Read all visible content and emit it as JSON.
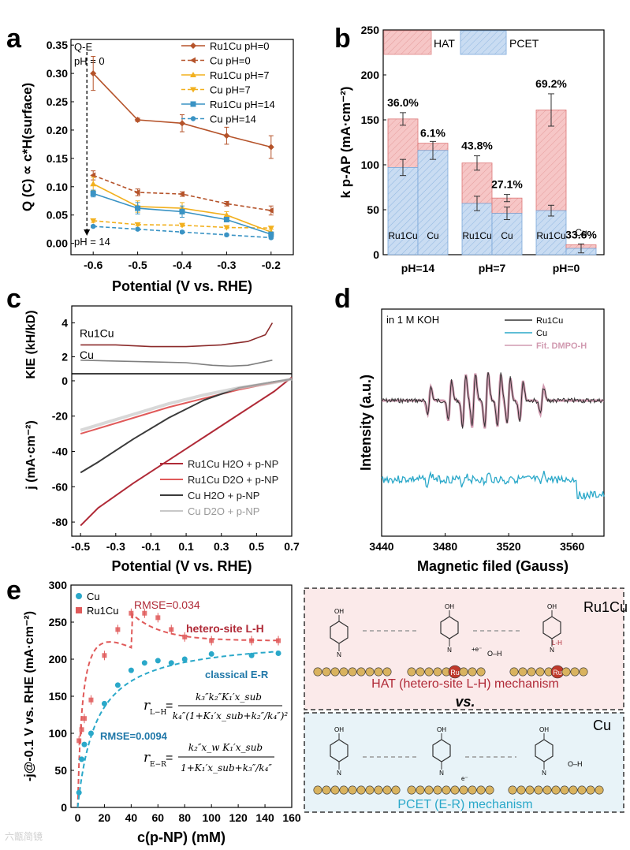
{
  "panel_labels": {
    "a": "a",
    "b": "b",
    "c": "c",
    "d": "d",
    "e": "e"
  },
  "colors": {
    "ru_ph0": "#b5532a",
    "cu_ph0": "#b5532a",
    "ru_ph7": "#f2b01e",
    "cu_ph7": "#f2b01e",
    "ru_ph14": "#3a93c4",
    "cu_ph14": "#3a93c4",
    "hat": "#f6c6c6",
    "pcet": "#c9dcf2",
    "ru_dark": "#8b2a2a",
    "cu_gray": "#7f7f7f",
    "ru_h2o": "#b02a37",
    "ru_d2o": "#e05a5a",
    "cu_h2o": "#3a3a3a",
    "cu_d2o": "#c8c8c8",
    "cyan": "#2aa8c9",
    "pink_fit": "#d19ab0",
    "ru1cu_box": "#fbeaea",
    "cu_box": "#e8f3f8",
    "gold": "#d9b35f",
    "ru_atom": "#c0392b"
  },
  "chart_data": [
    {
      "id": "a",
      "type": "line",
      "xlabel": "Potential (V vs. RHE)",
      "ylabel": "Q (C) ∝ c*H(surface)",
      "xlim": [
        -0.65,
        -0.15
      ],
      "ylim": [
        -0.02,
        0.36
      ],
      "xticks": [
        "-0.6",
        "-0.5",
        "-0.4",
        "-0.3",
        "-0.2"
      ],
      "yticks": [
        "0.00",
        "0.05",
        "0.10",
        "0.15",
        "0.20",
        "0.25",
        "0.30",
        "0.35"
      ],
      "annotations": {
        "qe": "Q-E",
        "ph0": "pH = 0",
        "ph14": "pH = 14"
      },
      "x": [
        -0.6,
        -0.5,
        -0.4,
        -0.3,
        -0.2
      ],
      "series": [
        {
          "name": "Ru1Cu pH=0",
          "values": [
            0.3,
            0.218,
            0.212,
            0.19,
            0.17
          ],
          "err": [
            0.03,
            0.003,
            0.015,
            0.015,
            0.02
          ],
          "dash": false,
          "marker": "diamond",
          "color": "#b5532a"
        },
        {
          "name": "Cu pH=0",
          "values": [
            0.12,
            0.09,
            0.087,
            0.07,
            0.058
          ],
          "err": [
            0.008,
            0.006,
            0.004,
            0.004,
            0.008
          ],
          "dash": true,
          "marker": "tri-left",
          "color": "#b5532a"
        },
        {
          "name": "Ru1Cu pH=7",
          "values": [
            0.105,
            0.065,
            0.062,
            0.05,
            0.02
          ],
          "err": [
            0.012,
            0.01,
            0.01,
            0.006,
            0.005
          ],
          "dash": false,
          "marker": "tri-up",
          "color": "#f2b01e"
        },
        {
          "name": "Cu pH=7",
          "values": [
            0.04,
            0.033,
            0.032,
            0.028,
            0.027
          ],
          "err": [
            0.003,
            0.002,
            0.002,
            0.002,
            0.002
          ],
          "dash": true,
          "marker": "tri-down",
          "color": "#f2b01e"
        },
        {
          "name": "Ru1Cu pH=14",
          "values": [
            0.088,
            0.062,
            0.056,
            0.042,
            0.016
          ],
          "err": [
            0.006,
            0.01,
            0.01,
            0.004,
            0.003
          ],
          "dash": false,
          "marker": "square",
          "color": "#3a93c4"
        },
        {
          "name": "Cu pH=14",
          "values": [
            0.03,
            0.025,
            0.02,
            0.015,
            0.01
          ],
          "err": [
            0.002,
            0.002,
            0.002,
            0.002,
            0.002
          ],
          "dash": true,
          "marker": "circle",
          "color": "#3a93c4"
        }
      ]
    },
    {
      "id": "b",
      "type": "bar",
      "stacked": true,
      "ylabel": "k p-AP (mA·cm⁻²)",
      "ylim": [
        0,
        250
      ],
      "yticks": [
        "0",
        "50",
        "100",
        "150",
        "200",
        "250"
      ],
      "legend": [
        "HAT",
        "PCET"
      ],
      "groups": [
        "pH=14",
        "pH=7",
        "pH=0"
      ],
      "bars": [
        {
          "group": "pH=14",
          "label": "Ru1Cu",
          "pcet": 97,
          "total": 151,
          "err_pcet": 9,
          "err_total": 7,
          "pct": "36.0%"
        },
        {
          "group": "pH=14",
          "label": "Cu",
          "pcet": 116,
          "total": 124,
          "err_pcet": 10,
          "err_total": null,
          "pct": "6.1%"
        },
        {
          "group": "pH=7",
          "label": "Ru1Cu",
          "pcet": 57,
          "total": 102,
          "err_pcet": 8,
          "err_total": 8,
          "pct": "43.8%"
        },
        {
          "group": "pH=7",
          "label": "Cu",
          "pcet": 46,
          "total": 63,
          "err_pcet": 7,
          "err_total": 4,
          "pct": "27.1%"
        },
        {
          "group": "pH=0",
          "label": "Ru1Cu",
          "pcet": 49,
          "total": 161,
          "err_pcet": 6,
          "err_total": 18,
          "pct": "69.2%"
        },
        {
          "group": "pH=0",
          "label": "Cu",
          "pcet": 7,
          "total": 11,
          "err_pcet": 5,
          "err_total": null,
          "pct": "33.6%"
        }
      ]
    },
    {
      "id": "c",
      "type": "line",
      "xlabel": "Potential (V vs. RHE)",
      "xlim": [
        -0.55,
        0.7
      ],
      "xticks": [
        "-0.5",
        "-0.3",
        "-0.1",
        "0.1",
        "0.3",
        "0.5",
        "0.7"
      ],
      "top": {
        "ylabel": "KIE (kH/kD)",
        "ylim": [
          1,
          5
        ],
        "yticks": [
          "2",
          "4"
        ],
        "series": [
          {
            "name": "Ru1Cu",
            "x": [
              -0.5,
              -0.3,
              -0.1,
              0.1,
              0.3,
              0.45,
              0.55,
              0.59
            ],
            "y": [
              2.7,
              2.7,
              2.6,
              2.6,
              2.7,
              2.9,
              3.3,
              4.0
            ]
          },
          {
            "name": "Cu",
            "x": [
              -0.5,
              -0.3,
              -0.1,
              0.1,
              0.25,
              0.35,
              0.45,
              0.59
            ],
            "y": [
              1.8,
              1.75,
              1.7,
              1.65,
              1.5,
              1.45,
              1.5,
              1.8
            ]
          }
        ]
      },
      "bottom": {
        "ylabel": "j (mA·cm⁻²)",
        "ylim": [
          -88,
          4
        ],
        "yticks": [
          "0",
          "-20",
          "-40",
          "-60",
          "-80"
        ],
        "series": [
          {
            "name": "Ru1Cu H2O + p-NP",
            "x": [
              -0.5,
              -0.4,
              -0.2,
              0,
              0.2,
              0.4,
              0.6,
              0.7
            ],
            "y": [
              -82,
              -72,
              -58,
              -45,
              -32,
              -19,
              -6,
              2
            ]
          },
          {
            "name": "Ru1Cu D2O + p-NP",
            "x": [
              -0.5,
              -0.4,
              -0.2,
              0,
              0.2,
              0.4,
              0.6,
              0.7
            ],
            "y": [
              -30,
              -27,
              -21,
              -15,
              -10,
              -5,
              -1,
              1
            ]
          },
          {
            "name": "Cu H2O + p-NP",
            "x": [
              -0.5,
              -0.4,
              -0.2,
              0,
              0.2,
              0.4,
              0.6,
              0.7
            ],
            "y": [
              -52,
              -46,
              -33,
              -21,
              -11,
              -4,
              -0.5,
              1
            ]
          },
          {
            "name": "Cu D2O + p-NP",
            "x": [
              -0.5,
              -0.4,
              -0.2,
              0,
              0.2,
              0.4,
              0.6,
              0.7
            ],
            "y": [
              -28,
              -25,
              -19,
              -13,
              -8,
              -4,
              -1,
              1
            ]
          }
        ]
      }
    },
    {
      "id": "d",
      "type": "line",
      "xlabel": "Magnetic filed (Gauss)",
      "ylabel": "Intensity (a.u.)",
      "xlim": [
        3440,
        3580
      ],
      "xticks": [
        "3440",
        "3480",
        "3520",
        "3560"
      ],
      "annotation": "in 1 M KOH",
      "legend": [
        "Ru1Cu",
        "Cu",
        "Fit. DMPO-H"
      ],
      "peaks": [
        3470,
        3483,
        3492,
        3498,
        3506,
        3514,
        3520,
        3528,
        3541
      ]
    },
    {
      "id": "e",
      "type": "scatter",
      "xlabel": "c(p-NP) (mM)",
      "ylabel": "-j@-0.1 V vs. RHE (mA·cm⁻²)",
      "xlim": [
        -5,
        160
      ],
      "ylim": [
        0,
        300
      ],
      "xticks": [
        "0",
        "20",
        "40",
        "60",
        "80",
        "100",
        "120",
        "140",
        "160"
      ],
      "yticks": [
        "0",
        "50",
        "100",
        "150",
        "200",
        "250",
        "300"
      ],
      "annotations": {
        "rmse_ru": "RMSE=0.034",
        "model_ru": "hetero-site L-H",
        "rmse_cu": "RMSE=0.0094",
        "model_cu": "classical E-R"
      },
      "legend": [
        "Cu",
        "Ru1Cu"
      ],
      "series": [
        {
          "name": "Cu",
          "x": [
            1,
            3,
            5,
            10,
            20,
            30,
            40,
            50,
            60,
            70,
            80,
            100,
            130,
            150
          ],
          "y": [
            20,
            65,
            85,
            100,
            140,
            165,
            185,
            195,
            198,
            195,
            200,
            207,
            205,
            208
          ]
        },
        {
          "name": "Ru1Cu",
          "x": [
            1,
            3,
            5,
            10,
            20,
            30,
            40,
            50,
            60,
            70,
            80,
            100,
            130,
            150
          ],
          "y": [
            90,
            105,
            120,
            145,
            205,
            240,
            262,
            262,
            256,
            240,
            230,
            225,
            225,
            225
          ]
        }
      ]
    }
  ],
  "panel_e_formulas": {
    "l_h_lhs": "r",
    "l_h_sub": "L−H",
    "l_h_num": "k₃″k₂″K₁′x_sub",
    "l_h_den": "k₄″(1+K₁′x_sub+k₂″/k₄″)²",
    "e_r_lhs": "r",
    "e_r_sub": "E−R",
    "e_r_num": "k₂″x_w K₁′x_sub",
    "e_r_den": "1+K₁′x_sub+k₃″/k₄″"
  },
  "schemes": {
    "ru1cu": {
      "title": "Ru1Cu",
      "caption": "HAT (hetero-site L-H) mechanism",
      "labels": [
        "+e⁻",
        "O–H",
        "L-H",
        "Ru"
      ]
    },
    "vs": "vs.",
    "cu": {
      "title": "Cu",
      "caption": "PCET (E-R) mechanism",
      "labels": [
        "e⁻",
        "O–H"
      ]
    }
  },
  "watermark": "六甑简镜"
}
